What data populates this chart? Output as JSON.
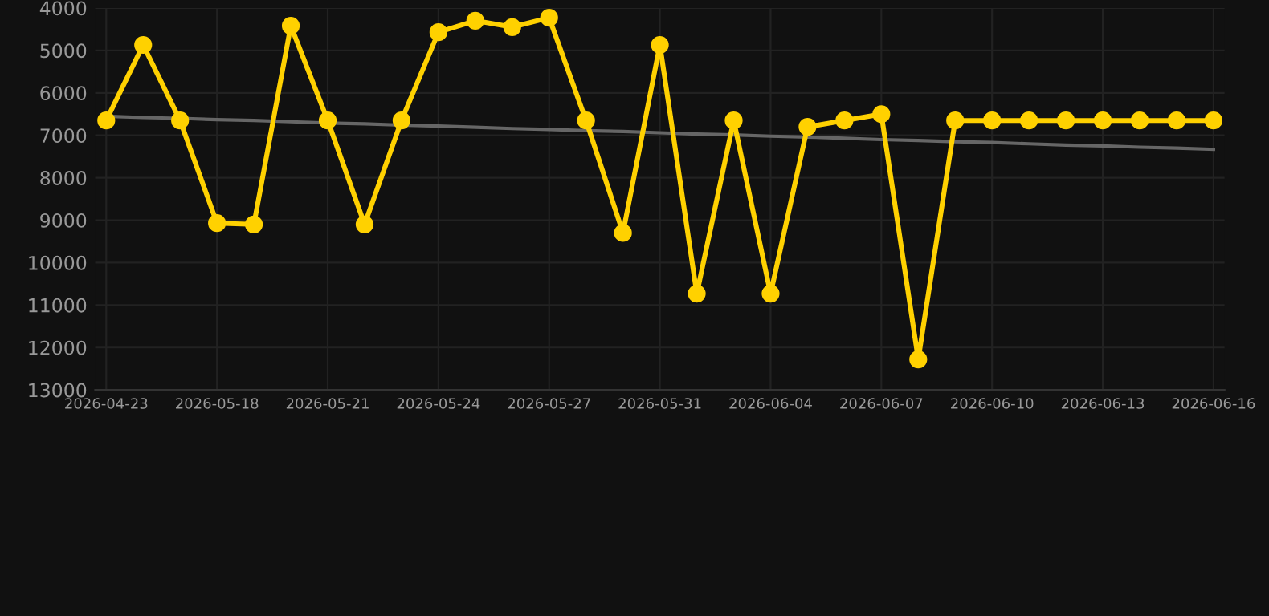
{
  "chart_data": {
    "type": "line",
    "categories": [
      "2026-04-23",
      null,
      null,
      "2026-05-18",
      null,
      null,
      "2026-05-21",
      null,
      null,
      "2026-05-24",
      null,
      null,
      "2026-05-27",
      null,
      null,
      "2026-05-31",
      null,
      null,
      "2026-06-04",
      null,
      null,
      "2026-06-07",
      null,
      null,
      "2026-06-10",
      null,
      null,
      "2026-06-13",
      null,
      null,
      "2026-06-16"
    ],
    "series": [
      {
        "color": "#ffd100",
        "marker": "circle",
        "values": [
          6650,
          4870,
          6650,
          9070,
          9100,
          4420,
          6650,
          9100,
          6650,
          4570,
          4300,
          4450,
          4230,
          6650,
          9300,
          4870,
          10730,
          6650,
          10730,
          6800,
          6650,
          6500,
          12280,
          6650,
          6650,
          6650,
          6650,
          6650,
          6650,
          6650,
          6650
        ]
      },
      {
        "color": "#666666",
        "marker": "none",
        "values": [
          6550,
          6580,
          6600,
          6630,
          6650,
          6680,
          6710,
          6730,
          6760,
          6780,
          6810,
          6840,
          6860,
          6890,
          6910,
          6940,
          6970,
          6990,
          7020,
          7040,
          7070,
          7100,
          7120,
          7150,
          7170,
          7200,
          7230,
          7250,
          7280,
          7300,
          7330
        ]
      }
    ],
    "ylim": [
      13000,
      4000
    ],
    "yticks": [
      4000,
      5000,
      6000,
      7000,
      8000,
      9000,
      10000,
      11000,
      12000,
      13000
    ],
    "grid": true
  }
}
